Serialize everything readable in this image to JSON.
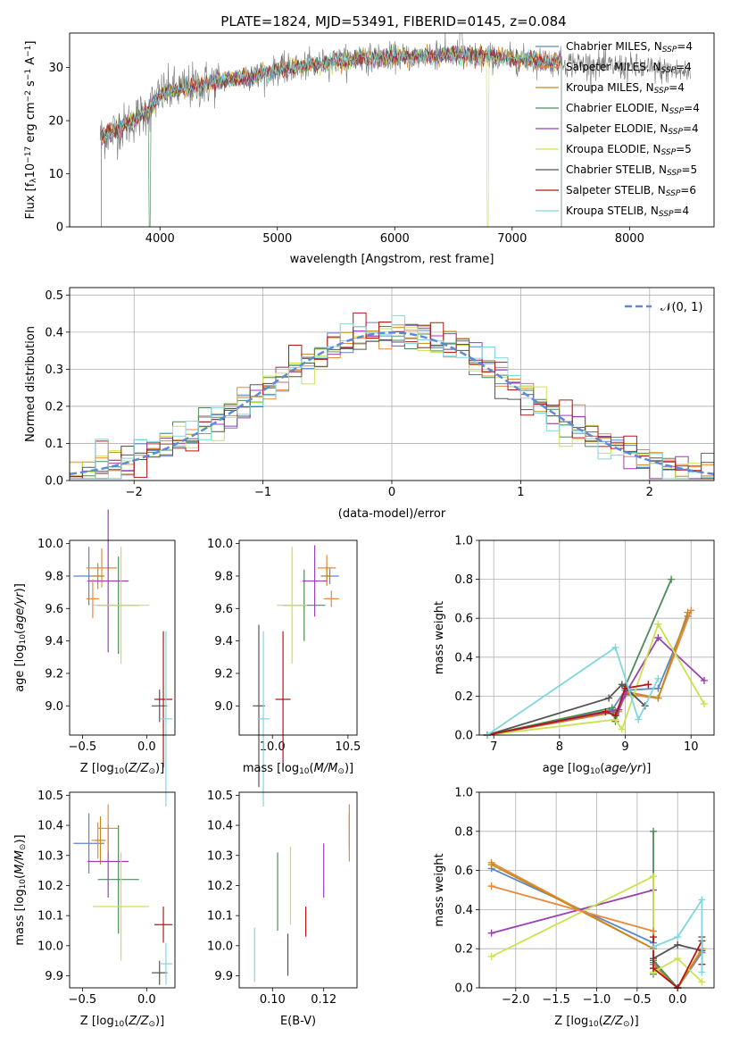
{
  "figure_title": "PLATE=1824, MJD=53491, FIBERID=0145, z=0.084",
  "models": [
    {
      "name": "Chabrier MILES, N_SSP=4",
      "color": "#5b86c9"
    },
    {
      "name": "Salpeter MILES, N_SSP=4",
      "color": "#e8893b"
    },
    {
      "name": "Kroupa MILES, N_SSP=4",
      "color": "#c58b1d"
    },
    {
      "name": "Chabrier ELODIE, N_SSP=4",
      "color": "#4e8a5a"
    },
    {
      "name": "Salpeter ELODIE, N_SSP=4",
      "color": "#9b3fb5"
    },
    {
      "name": "Kroupa ELODIE, N_SSP=5",
      "color": "#c9e34f"
    },
    {
      "name": "Chabrier STELIB, N_SSP=5",
      "color": "#555555"
    },
    {
      "name": "Salpeter STELIB, N_SSP=6",
      "color": "#b01818"
    },
    {
      "name": "Kroupa STELIB, N_SSP=4",
      "color": "#7fd6e0"
    }
  ],
  "chart_data": [
    {
      "id": "spectrum",
      "type": "line",
      "xlabel": "wavelength [Angstrom, rest frame]",
      "ylabel": "Flux [f_λ 10^-17 erg cm^-2 s^-1 A^-1]",
      "xlim": [
        3230,
        8720
      ],
      "ylim": [
        0,
        36.5
      ],
      "xticks": [
        4000,
        5000,
        6000,
        7000,
        8000
      ],
      "yticks": [
        0,
        10,
        20,
        30
      ],
      "grid": false,
      "legend": "right",
      "continuum": {
        "x": [
          3500,
          3700,
          3900,
          4000,
          4200,
          4500,
          4800,
          5000,
          5300,
          5600,
          5900,
          6200,
          6500,
          6800,
          7100,
          7400,
          7700,
          8000,
          8300,
          8500
        ],
        "y": [
          17,
          19,
          22,
          25,
          26,
          27.5,
          28.5,
          29.5,
          30.5,
          31.5,
          32,
          32,
          32.5,
          32,
          31.5,
          31,
          30.5,
          30,
          29.5,
          29
        ]
      },
      "data_x_range": [
        3490,
        8520
      ],
      "model_x_range": [
        3500,
        7420
      ],
      "dropouts": [
        3520,
        3910,
        6790,
        7410
      ]
    },
    {
      "id": "residual-histogram",
      "type": "line",
      "xlabel": "(data-model)/error",
      "ylabel": "Normed distribution",
      "xlim": [
        -2.5,
        2.5
      ],
      "ylim": [
        0,
        0.52
      ],
      "xticks": [
        -2,
        -1,
        0,
        1,
        2
      ],
      "yticks": [
        0.0,
        0.1,
        0.2,
        0.3,
        0.4,
        0.5
      ],
      "grid": true,
      "legend": "top-right",
      "reference_curve": "N(0,1)",
      "bin_width": 0.1
    },
    {
      "id": "age-vs-Z",
      "type": "scatter",
      "xlabel": "Z [log10(Z/Z⊙)]",
      "ylabel": "age [log10(age/yr)]",
      "xlim": [
        -0.6,
        0.22
      ],
      "ylim": [
        8.82,
        10.02
      ],
      "xticks": [
        -0.5,
        0.0
      ],
      "yticks": [
        9.0,
        9.2,
        9.4,
        9.6,
        9.8,
        10.0
      ],
      "grid": false,
      "points": [
        {
          "m": 0,
          "x": -0.45,
          "y": 9.8,
          "xe": 0.12,
          "ye": 0.18
        },
        {
          "m": 1,
          "x": -0.35,
          "y": 9.85,
          "xe": 0.12,
          "ye": 0.12
        },
        {
          "m": 2,
          "x": -0.38,
          "y": 9.8,
          "xe": 0.05,
          "ye": 0.08
        },
        {
          "m": 3,
          "x": -0.22,
          "y": 9.62,
          "xe": 0.16,
          "ye": 0.3
        },
        {
          "m": 4,
          "x": -0.3,
          "y": 9.77,
          "xe": 0.16,
          "ye": 0.44
        },
        {
          "m": 5,
          "x": -0.2,
          "y": 9.62,
          "xe": 0.22,
          "ye": 0.36
        },
        {
          "m": 6,
          "x": 0.1,
          "y": 9.0,
          "xe": 0.06,
          "ye": 0.1
        },
        {
          "m": 7,
          "x": 0.13,
          "y": 9.04,
          "xe": 0.07,
          "ye": 0.42
        },
        {
          "m": 8,
          "x": 0.15,
          "y": 8.92,
          "xe": 0.05,
          "ye": 0.54
        },
        {
          "m": 1,
          "x": -0.42,
          "y": 9.66,
          "xe": 0.05,
          "ye": 0.12
        }
      ]
    },
    {
      "id": "age-vs-mass",
      "type": "scatter",
      "xlabel": "mass [log10(M/M⊙)]",
      "ylabel": "",
      "xlim": [
        9.78,
        10.56
      ],
      "ylim": [
        8.82,
        10.02
      ],
      "xticks": [
        10.0,
        10.5
      ],
      "yticks": [
        9.0,
        9.2,
        9.4,
        9.6,
        9.8,
        10.0
      ],
      "grid": false,
      "points": [
        {
          "m": 0,
          "x": 10.38,
          "y": 9.8,
          "xe": 0.06,
          "ye": 0.05
        },
        {
          "m": 1,
          "x": 10.36,
          "y": 9.85,
          "xe": 0.06,
          "ye": 0.08
        },
        {
          "m": 2,
          "x": 10.36,
          "y": 9.8,
          "xe": 0.03,
          "ye": 0.06
        },
        {
          "m": 3,
          "x": 10.21,
          "y": 9.62,
          "xe": 0.14,
          "ye": 0.22
        },
        {
          "m": 4,
          "x": 10.28,
          "y": 9.77,
          "xe": 0.08,
          "ye": 0.22
        },
        {
          "m": 5,
          "x": 10.13,
          "y": 9.62,
          "xe": 0.1,
          "ye": 0.36
        },
        {
          "m": 6,
          "x": 9.91,
          "y": 9.0,
          "xe": 0.04,
          "ye": 0.5
        },
        {
          "m": 7,
          "x": 10.07,
          "y": 9.04,
          "xe": 0.05,
          "ye": 0.42
        },
        {
          "m": 8,
          "x": 9.94,
          "y": 8.92,
          "xe": 0.04,
          "ye": 0.54
        },
        {
          "m": 1,
          "x": 10.39,
          "y": 9.66,
          "xe": 0.05,
          "ye": 0.05
        }
      ]
    },
    {
      "id": "mass-weight-vs-age",
      "type": "line",
      "xlabel": "age [log10(age/yr)]",
      "ylabel": "mass weight",
      "xlim": [
        6.78,
        10.35
      ],
      "ylim": [
        0,
        1.0
      ],
      "xticks": [
        7,
        8,
        9,
        10
      ],
      "yticks": [
        0.0,
        0.2,
        0.4,
        0.6,
        0.8,
        1.0
      ],
      "grid": true,
      "series": [
        {
          "m": 0,
          "x": [
            6.9,
            8.8,
            9.0,
            9.5,
            9.95
          ],
          "y": [
            0.0,
            0.13,
            0.23,
            0.24,
            0.61
          ]
        },
        {
          "m": 1,
          "x": [
            6.9,
            8.9,
            9.0,
            9.5,
            10.0
          ],
          "y": [
            0.0,
            0.12,
            0.21,
            0.19,
            0.64
          ]
        },
        {
          "m": 2,
          "x": [
            6.9,
            8.85,
            9.05,
            9.5,
            9.95
          ],
          "y": [
            0.0,
            0.12,
            0.22,
            0.19,
            0.63
          ]
        },
        {
          "m": 3,
          "x": [
            6.9,
            8.8,
            8.85,
            9.0,
            9.7
          ],
          "y": [
            0.0,
            0.14,
            0.07,
            0.25,
            0.8
          ]
        },
        {
          "m": 4,
          "x": [
            6.9,
            8.9,
            9.0,
            9.5,
            10.2
          ],
          "y": [
            0.0,
            0.13,
            0.21,
            0.5,
            0.28
          ]
        },
        {
          "m": 5,
          "x": [
            6.9,
            8.85,
            8.95,
            9.5,
            10.2
          ],
          "y": [
            0.0,
            0.08,
            0.03,
            0.57,
            0.16
          ]
        },
        {
          "m": 6,
          "x": [
            6.9,
            8.75,
            8.95,
            9.3
          ],
          "y": [
            0.0,
            0.19,
            0.26,
            0.15
          ]
        },
        {
          "m": 7,
          "x": [
            6.9,
            8.7,
            8.85,
            9.0,
            9.35
          ],
          "y": [
            0.0,
            0.12,
            0.1,
            0.24,
            0.26
          ]
        },
        {
          "m": 8,
          "x": [
            6.9,
            8.85,
            9.2,
            9.5
          ],
          "y": [
            0.0,
            0.45,
            0.08,
            0.29
          ]
        }
      ]
    },
    {
      "id": "mass-vs-Z",
      "type": "scatter",
      "xlabel": "Z [log10(Z/Z⊙)]",
      "ylabel": "mass [log10(M/M⊙)]",
      "xlim": [
        -0.6,
        0.22
      ],
      "ylim": [
        9.86,
        10.51
      ],
      "xticks": [
        -0.5,
        0.0
      ],
      "yticks": [
        9.9,
        10.0,
        10.1,
        10.2,
        10.3,
        10.4,
        10.5
      ],
      "grid": false,
      "points": [
        {
          "m": 0,
          "x": -0.45,
          "y": 10.34,
          "xe": 0.12,
          "ye": 0.1
        },
        {
          "m": 1,
          "x": -0.38,
          "y": 10.35,
          "xe": 0.05,
          "ye": 0.06
        },
        {
          "m": 2,
          "x": -0.36,
          "y": 10.35,
          "xe": 0.04,
          "ye": 0.08
        },
        {
          "m": 3,
          "x": -0.22,
          "y": 10.22,
          "xe": 0.16,
          "ye": 0.18
        },
        {
          "m": 4,
          "x": -0.3,
          "y": 10.28,
          "xe": 0.16,
          "ye": 0.12
        },
        {
          "m": 5,
          "x": -0.2,
          "y": 10.13,
          "xe": 0.22,
          "ye": 0.18
        },
        {
          "m": 6,
          "x": 0.1,
          "y": 9.91,
          "xe": 0.06,
          "ye": 0.04
        },
        {
          "m": 7,
          "x": 0.13,
          "y": 10.07,
          "xe": 0.07,
          "ye": 0.06
        },
        {
          "m": 8,
          "x": 0.15,
          "y": 9.94,
          "xe": 0.05,
          "ye": 0.07
        },
        {
          "m": 1,
          "x": -0.3,
          "y": 10.39,
          "xe": 0.08,
          "ye": 0.08
        }
      ]
    },
    {
      "id": "mass-vs-EBV",
      "type": "scatter",
      "xlabel": "E(B-V)",
      "ylabel": "",
      "xlim": [
        0.087,
        0.133
      ],
      "ylim": [
        9.86,
        10.51
      ],
      "xticks": [
        0.1,
        0.12
      ],
      "yticks": [
        9.9,
        10.0,
        10.1,
        10.2,
        10.3,
        10.4,
        10.5
      ],
      "grid": false,
      "points": [
        {
          "m": 0,
          "x": 0.13,
          "y": 10.38,
          "xe": 0,
          "ye": 0.06
        },
        {
          "m": 1,
          "x": 0.13,
          "y": 10.36,
          "xe": 0,
          "ye": 0.08
        },
        {
          "m": 3,
          "x": 0.102,
          "y": 10.18,
          "xe": 0,
          "ye": 0.13
        },
        {
          "m": 4,
          "x": 0.12,
          "y": 10.25,
          "xe": 0,
          "ye": 0.09
        },
        {
          "m": 5,
          "x": 0.107,
          "y": 10.2,
          "xe": 0,
          "ye": 0.13
        },
        {
          "m": 6,
          "x": 0.106,
          "y": 9.97,
          "xe": 0,
          "ye": 0.07
        },
        {
          "m": 7,
          "x": 0.113,
          "y": 10.08,
          "xe": 0,
          "ye": 0.05
        },
        {
          "m": 8,
          "x": 0.093,
          "y": 9.97,
          "xe": 0,
          "ye": 0.09
        },
        {
          "m": 1,
          "x": 0.13,
          "y": 10.41,
          "xe": 0,
          "ye": 0.06
        }
      ]
    },
    {
      "id": "mass-weight-vs-Z",
      "type": "line",
      "xlabel": "Z [log10(Z/Z⊙)]",
      "ylabel": "mass weight",
      "xlim": [
        -2.45,
        0.45
      ],
      "ylim": [
        0,
        1.0
      ],
      "xticks": [
        -2.0,
        -1.5,
        -1.0,
        -0.5,
        0.0
      ],
      "yticks": [
        0.0,
        0.2,
        0.4,
        0.6,
        0.8,
        1.0
      ],
      "grid": true,
      "series": [
        {
          "m": 0,
          "x": [
            -2.3,
            -0.3,
            -0.3,
            0.0,
            0.3
          ],
          "y": [
            0.61,
            0.23,
            0.13,
            0.0,
            0.18
          ]
        },
        {
          "m": 1,
          "x": [
            -2.3,
            -0.3,
            -0.3,
            0.0,
            0.3
          ],
          "y": [
            0.64,
            0.2,
            0.1,
            0.0,
            0.2
          ]
        },
        {
          "m": 2,
          "x": [
            -2.3,
            -0.3,
            -0.3,
            0.0,
            0.3
          ],
          "y": [
            0.63,
            0.2,
            0.12,
            0.0,
            0.19
          ]
        },
        {
          "m": 3,
          "x": [
            -0.3,
            -0.3,
            -0.3,
            0.0
          ],
          "y": [
            0.8,
            0.07,
            0.14,
            0.0
          ]
        },
        {
          "m": 4,
          "x": [
            -2.3,
            -0.3
          ],
          "y": [
            0.28,
            0.5
          ]
        },
        {
          "m": 5,
          "x": [
            -2.3,
            -0.3,
            -0.3,
            0.0,
            0.3
          ],
          "y": [
            0.16,
            0.57,
            0.08,
            0.15,
            0.03
          ]
        },
        {
          "m": 6,
          "x": [
            -0.3,
            0.0,
            0.3,
            0.3
          ],
          "y": [
            0.15,
            0.22,
            0.19,
            0.26
          ]
        },
        {
          "m": 7,
          "x": [
            -0.3,
            -0.3,
            0.0,
            0.3,
            0.3
          ],
          "y": [
            0.26,
            0.1,
            0.0,
            0.24,
            0.12
          ]
        },
        {
          "m": 8,
          "x": [
            -0.3,
            0.0,
            0.3,
            0.3
          ],
          "y": [
            0.21,
            0.26,
            0.45,
            0.08
          ]
        },
        {
          "m": 1,
          "x": [
            -2.3,
            -0.3
          ],
          "y": [
            0.52,
            0.29
          ]
        }
      ]
    }
  ]
}
